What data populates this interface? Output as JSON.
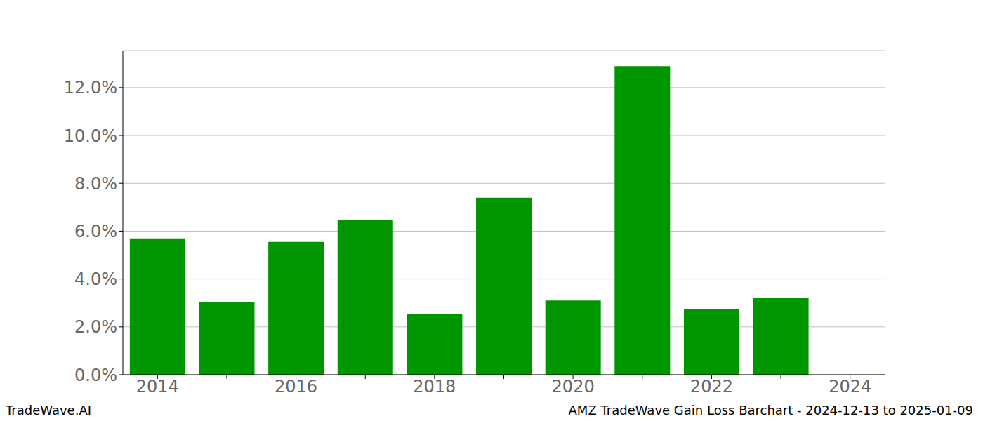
{
  "chart_data": {
    "type": "bar",
    "title": "AMZ TradeWave Gain Loss Barchart - 2024-12-13 to 2025-01-09",
    "source": "TradeWave.AI",
    "categories": [
      "2014",
      null,
      "2016",
      null,
      "2018",
      null,
      "2020",
      null,
      "2022",
      null,
      "2024"
    ],
    "values": [
      5.7,
      3.05,
      5.55,
      6.45,
      2.55,
      7.4,
      3.1,
      12.9,
      2.75,
      3.22,
      null
    ],
    "color": "#009600",
    "ylim": [
      0,
      13.55
    ],
    "yticks": [
      {
        "value": 0,
        "label": "0.0%"
      },
      {
        "value": 2,
        "label": "2.0%"
      },
      {
        "value": 4,
        "label": "4.0%"
      },
      {
        "value": 6,
        "label": "6.0%"
      },
      {
        "value": 8,
        "label": "8.0%"
      },
      {
        "value": 10,
        "label": "10.0%"
      },
      {
        "value": 12,
        "label": "12.0%"
      }
    ],
    "grid": true
  }
}
